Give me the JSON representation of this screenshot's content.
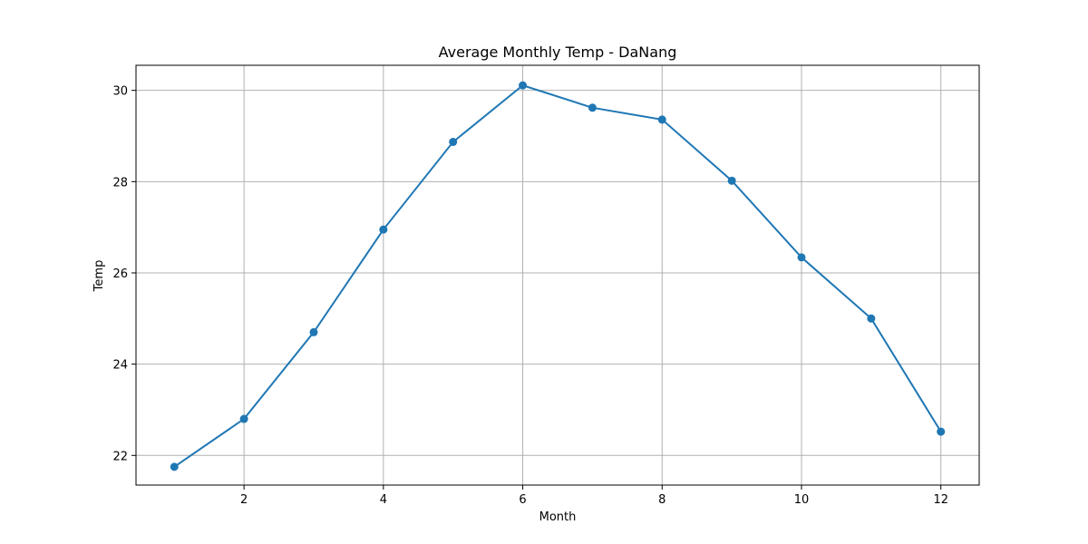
{
  "chart_data": {
    "type": "line",
    "title": "Average Monthly Temp - DaNang",
    "xlabel": "Month",
    "ylabel": "Temp",
    "xlim": [
      0.45,
      12.55
    ],
    "ylim": [
      21.35,
      30.55
    ],
    "xticks": [
      2,
      4,
      6,
      8,
      10,
      12
    ],
    "yticks": [
      22,
      24,
      26,
      28,
      30
    ],
    "grid": true,
    "series": [
      {
        "color": "#1f77b4",
        "marker": "circle",
        "x": [
          1,
          2,
          3,
          4,
          5,
          6,
          7,
          8,
          9,
          10,
          11,
          12
        ],
        "y": [
          21.75,
          22.8,
          24.7,
          26.95,
          28.87,
          30.11,
          29.62,
          29.36,
          28.02,
          26.34,
          25.0,
          22.52
        ]
      }
    ]
  }
}
